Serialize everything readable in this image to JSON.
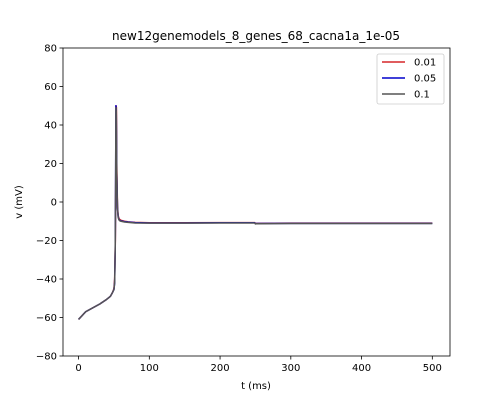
{
  "chart_data": {
    "type": "line",
    "title": "new12genemodels_8_genes_68_cacna1a_1e-05",
    "xlabel": "t (ms)",
    "ylabel": "v (mV)",
    "xlim": [
      -22,
      525
    ],
    "ylim": [
      -80,
      80
    ],
    "xticks": [
      0,
      100,
      200,
      300,
      400,
      500
    ],
    "yticks": [
      -80,
      -60,
      -40,
      -20,
      0,
      20,
      40,
      60,
      80
    ],
    "grid": false,
    "legend_position": "top-right",
    "series": [
      {
        "name": "0.01",
        "color": "#d62728",
        "x": [
          0,
          5,
          10,
          20,
          30,
          40,
          45,
          48,
          50,
          51,
          52,
          52.5,
          53,
          53.5,
          54,
          55,
          56,
          57,
          58,
          60,
          65,
          70,
          80,
          100,
          150,
          200,
          249,
          250,
          251,
          300,
          350,
          400,
          450,
          500
        ],
        "y": [
          -61,
          -59,
          -57,
          -55,
          -53,
          -50.5,
          -49,
          -47,
          -45,
          -40,
          -20,
          10,
          50,
          49,
          20,
          -2,
          -7,
          -8.5,
          -9,
          -9.5,
          -10,
          -10.3,
          -10.6,
          -10.8,
          -10.8,
          -10.7,
          -10.7,
          -11.2,
          -11.1,
          -11,
          -11,
          -11,
          -11,
          -11
        ]
      },
      {
        "name": "0.05",
        "color": "#0000cc",
        "x": [
          0,
          5,
          10,
          20,
          30,
          40,
          45,
          48,
          50,
          51,
          51.8,
          52.3,
          52.8,
          53.3,
          54,
          55,
          56,
          57,
          58,
          60,
          65,
          70,
          80,
          100,
          150,
          200,
          249,
          250,
          251,
          300,
          350,
          400,
          450,
          500
        ],
        "y": [
          -61,
          -59,
          -57,
          -55,
          -53,
          -50.5,
          -49,
          -47,
          -45.5,
          -42,
          -25,
          5,
          50,
          48,
          15,
          -3,
          -7.5,
          -9,
          -9.5,
          -9.8,
          -10.2,
          -10.4,
          -10.7,
          -10.9,
          -10.9,
          -10.8,
          -10.8,
          -11.3,
          -11.2,
          -11.1,
          -11.1,
          -11.1,
          -11.1,
          -11.1
        ]
      },
      {
        "name": "0.1",
        "color": "#555555",
        "x": [
          0,
          5,
          10,
          20,
          30,
          40,
          45,
          48,
          50,
          51,
          51.8,
          52.3,
          52.8,
          53.3,
          54,
          55,
          56,
          57,
          58,
          60,
          65,
          70,
          80,
          100,
          150,
          200,
          249,
          250,
          251,
          300,
          350,
          400,
          450,
          500
        ],
        "y": [
          -61,
          -59,
          -57,
          -55,
          -53,
          -50.5,
          -49,
          -47,
          -45.5,
          -42,
          -25,
          5,
          49,
          47,
          14,
          -3.5,
          -8,
          -9.2,
          -9.7,
          -10,
          -10.4,
          -10.6,
          -10.9,
          -11,
          -11,
          -10.9,
          -10.9,
          -11.4,
          -11.3,
          -11.2,
          -11.2,
          -11.2,
          -11.2,
          -11.2
        ]
      }
    ]
  }
}
